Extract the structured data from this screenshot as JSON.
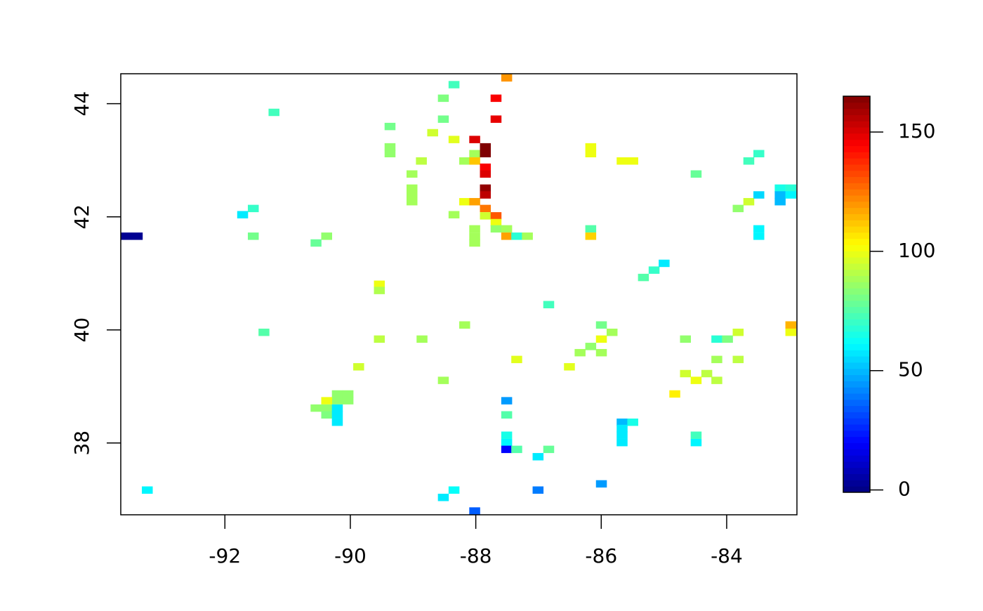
{
  "chart_data": {
    "type": "heatmap",
    "x": [
      -93.57,
      -93.4,
      -93.24,
      -91.22,
      -91.72,
      -91.55,
      -91.55,
      -91.38,
      -90.55,
      -90.38,
      -89.37,
      -89.37,
      -89.37,
      -89.54,
      -89.54,
      -89.54,
      -89.87,
      -89.02,
      -89.02,
      -89.02,
      -89.02,
      -88.87,
      -88.69,
      -88.52,
      -88.52,
      -88.35,
      -88.35,
      -88.35,
      -88.86,
      -88.18,
      -88.02,
      -88.02,
      -88.18,
      -88.02,
      -88.02,
      -87.85,
      -87.85,
      -87.85,
      -87.85,
      -87.85,
      -87.85,
      -87.85,
      -87.85,
      -87.68,
      -87.68,
      -87.68,
      -87.68,
      -87.51,
      -88.02,
      -88.02,
      -88.02,
      -87.68,
      -87.51,
      -87.51,
      -87.35,
      -87.18,
      -88.18,
      -88.52,
      -90.21,
      -90.04,
      -90.21,
      -90.04,
      -90.38,
      -90.55,
      -90.38,
      -90.38,
      -90.21,
      -90.21,
      -90.21,
      -87.35,
      -87.51,
      -87.51,
      -87.51,
      -87.51,
      -87.51,
      -87.35,
      -87.01,
      -86.84,
      -87.01,
      -86.84,
      -88.02,
      -88.52,
      -88.35,
      -86.51,
      -86.34,
      -86.17,
      -86.0,
      -86.0,
      -85.83,
      -86.0,
      -86.17,
      -86.17,
      -86.17,
      -86.17,
      -85.67,
      -85.5,
      -85.33,
      -85.16,
      -85.0,
      -86.0,
      -85.67,
      -85.5,
      -85.67,
      -85.67,
      -85.67,
      -84.83,
      -84.66,
      -84.66,
      -84.49,
      -84.32,
      -84.16,
      -84.49,
      -84.49,
      -84.49,
      -84.16,
      -83.99,
      -83.82,
      -84.16,
      -83.82,
      -83.82,
      -83.65,
      -83.65,
      -83.49,
      -83.49,
      -83.49,
      -83.49,
      -83.15,
      -82.98,
      -83.15,
      -83.15,
      -82.98,
      -82.98,
      -82.98
    ],
    "y": [
      41.66,
      41.66,
      37.17,
      43.85,
      42.04,
      42.15,
      41.66,
      39.96,
      41.54,
      41.66,
      43.6,
      43.24,
      43.12,
      40.81,
      40.7,
      39.84,
      39.35,
      42.76,
      42.51,
      42.39,
      42.27,
      42.99,
      43.49,
      44.1,
      43.73,
      44.34,
      43.37,
      42.04,
      39.84,
      42.99,
      43.12,
      42.99,
      42.27,
      42.27,
      43.37,
      43.24,
      43.12,
      42.88,
      42.76,
      42.51,
      42.39,
      42.15,
      42.02,
      42.02,
      41.9,
      44.1,
      43.73,
      44.46,
      41.79,
      41.66,
      41.54,
      41.79,
      41.79,
      41.66,
      41.66,
      41.66,
      40.09,
      39.11,
      38.87,
      38.87,
      38.75,
      38.75,
      38.75,
      38.62,
      38.62,
      38.5,
      38.62,
      38.5,
      38.37,
      39.48,
      38.75,
      38.5,
      38.14,
      38.01,
      37.89,
      37.89,
      37.76,
      37.89,
      37.17,
      40.45,
      36.8,
      37.04,
      37.17,
      39.35,
      39.6,
      39.71,
      39.84,
      40.09,
      39.96,
      39.6,
      43.24,
      43.12,
      41.79,
      41.66,
      42.99,
      42.99,
      40.93,
      41.06,
      41.18,
      37.28,
      38.37,
      38.37,
      38.26,
      38.14,
      38.01,
      38.87,
      39.84,
      39.23,
      39.11,
      39.23,
      39.11,
      42.76,
      38.14,
      38.01,
      39.84,
      39.84,
      39.96,
      39.48,
      39.48,
      42.15,
      42.27,
      42.99,
      43.12,
      42.39,
      41.79,
      41.66,
      42.51,
      42.51,
      42.39,
      42.27,
      42.39,
      40.09,
      39.96
    ],
    "values": [
      2,
      2,
      60,
      72,
      58,
      70,
      80,
      75,
      78,
      85,
      80,
      85,
      85,
      100,
      90,
      92,
      95,
      88,
      88,
      88,
      88,
      92,
      95,
      82,
      80,
      72,
      98,
      88,
      88,
      88,
      88,
      112,
      100,
      118,
      150,
      165,
      165,
      145,
      150,
      162,
      155,
      125,
      95,
      130,
      100,
      145,
      148,
      120,
      88,
      88,
      88,
      85,
      88,
      118,
      68,
      88,
      88,
      88,
      85,
      85,
      85,
      85,
      100,
      85,
      85,
      82,
      58,
      58,
      58,
      98,
      45,
      75,
      65,
      60,
      20,
      75,
      58,
      78,
      40,
      72,
      35,
      58,
      62,
      98,
      88,
      85,
      100,
      80,
      88,
      88,
      100,
      100,
      75,
      110,
      100,
      100,
      75,
      70,
      58,
      45,
      50,
      65,
      58,
      58,
      58,
      105,
      85,
      95,
      100,
      92,
      92,
      78,
      72,
      60,
      68,
      82,
      95,
      88,
      92,
      85,
      95,
      72,
      70,
      55,
      60,
      60,
      65,
      68,
      50,
      50,
      60,
      115,
      100
    ],
    "xlim": [
      -93.66,
      -82.88
    ],
    "ylim": [
      36.73,
      44.53
    ],
    "xticks": [
      -92,
      -90,
      -88,
      -86,
      -84
    ],
    "yticks": [
      38,
      40,
      42,
      44
    ],
    "zlim": [
      -1,
      165
    ],
    "zticks": [
      0,
      50,
      100,
      150
    ],
    "colormap": [
      "#00007F",
      "#0000FF",
      "#007FFF",
      "#00FFFF",
      "#7FFF7F",
      "#FFFF00",
      "#FF7F00",
      "#FF0000",
      "#7F0000"
    ]
  }
}
